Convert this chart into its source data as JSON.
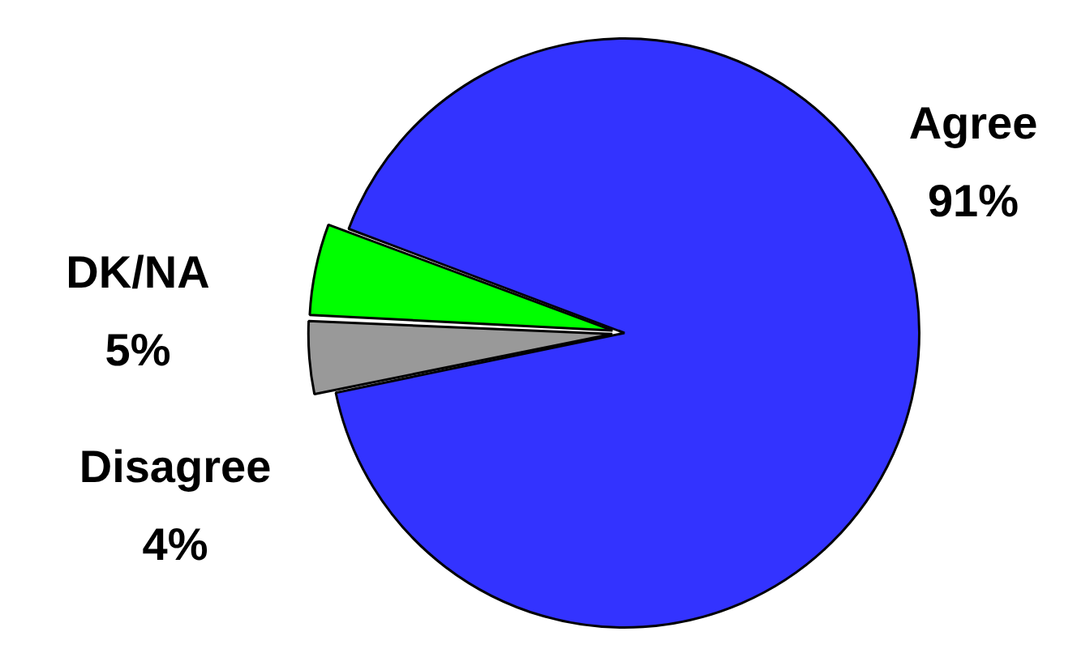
{
  "chart_data": {
    "type": "pie",
    "categories": [
      "Agree",
      "Disagree",
      "DK/NA"
    ],
    "values": [
      91,
      4,
      5
    ],
    "value_labels": [
      "91%",
      "4%",
      "5%"
    ],
    "colors": [
      "#3333ff",
      "#999999",
      "#00ff00"
    ],
    "legend": false
  }
}
